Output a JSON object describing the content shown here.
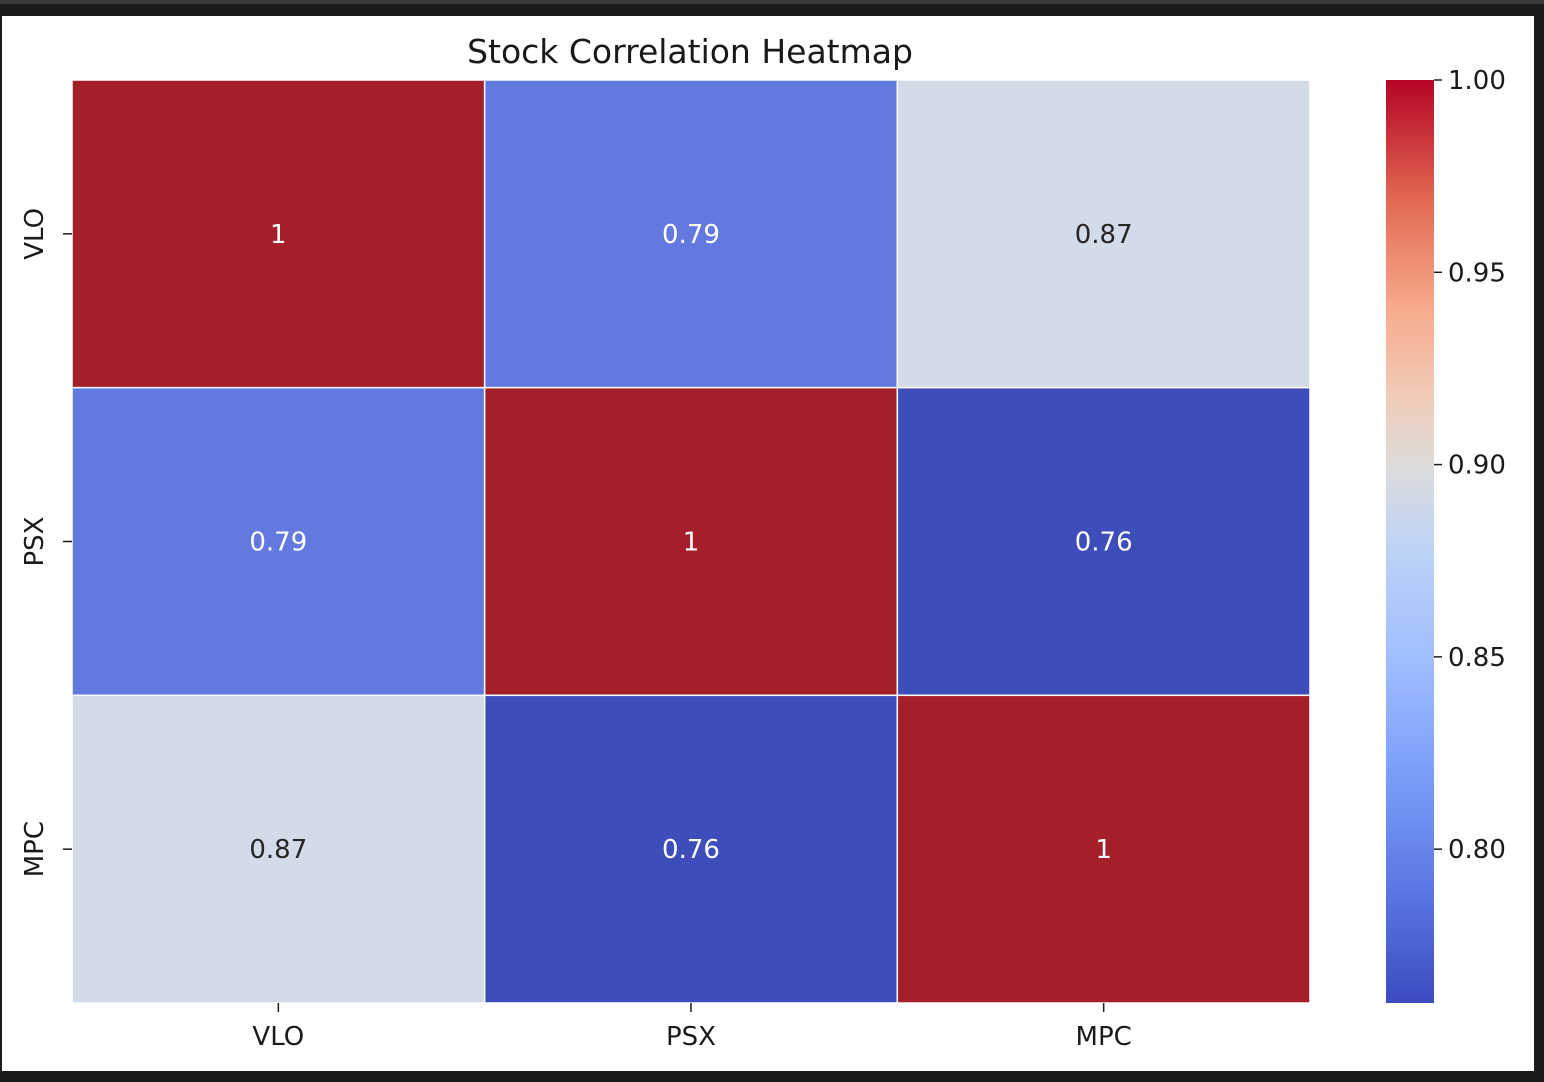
{
  "chart_data": {
    "type": "heatmap",
    "title": "Stock Correlation Heatmap",
    "x_categories": [
      "VLO",
      "PSX",
      "MPC"
    ],
    "y_categories": [
      "VLO",
      "PSX",
      "MPC"
    ],
    "matrix": [
      [
        1.0,
        0.79,
        0.87
      ],
      [
        0.79,
        1.0,
        0.76
      ],
      [
        0.87,
        0.76,
        1.0
      ]
    ],
    "cell_labels": [
      [
        "1",
        "0.79",
        "0.87"
      ],
      [
        "0.79",
        "1",
        "0.76"
      ],
      [
        "0.87",
        "0.76",
        "1"
      ]
    ],
    "colormap": "coolwarm",
    "vmin": 0.76,
    "vmax": 1.0,
    "colorbar_ticks": [
      "1.00",
      "0.95",
      "0.90",
      "0.85",
      "0.80"
    ],
    "colorbar_tick_values": [
      1.0,
      0.95,
      0.9,
      0.85,
      0.8
    ],
    "colors": {
      "high": "#a51f2b",
      "mid": "#d4dbe8",
      "low": "#3d4eba"
    }
  }
}
